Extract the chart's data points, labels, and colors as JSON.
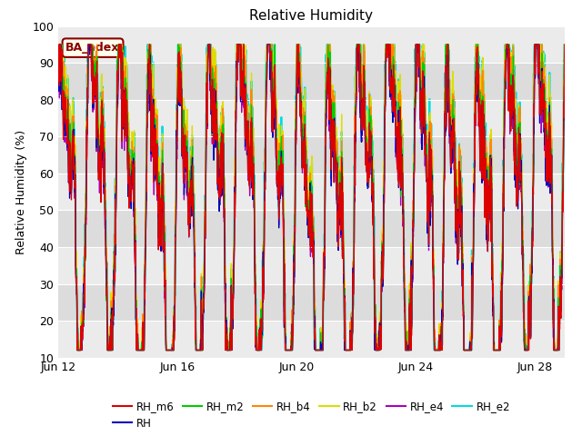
{
  "title": "Relative Humidity",
  "ylabel": "Relative Humidity (%)",
  "ylim": [
    10,
    100
  ],
  "fig_bg_color": "#ffffff",
  "plot_bg_color": "#e8e8e8",
  "annotation_text": "BA_adex",
  "annotation_color": "#8b0000",
  "annotation_bg": "#ffffee",
  "annotation_border": "#8b0000",
  "series": [
    {
      "label": "RH_m6",
      "color": "#dd0000",
      "lw": 0.9,
      "zorder": 6
    },
    {
      "label": "RH",
      "color": "#0000bb",
      "lw": 0.9,
      "zorder": 5
    },
    {
      "label": "RH_m2",
      "color": "#00cc00",
      "lw": 0.9,
      "zorder": 4
    },
    {
      "label": "RH_b4",
      "color": "#ff8800",
      "lw": 0.9,
      "zorder": 3
    },
    {
      "label": "RH_b2",
      "color": "#dddd00",
      "lw": 0.9,
      "zorder": 2
    },
    {
      "label": "RH_e4",
      "color": "#aa00bb",
      "lw": 0.9,
      "zorder": 1
    },
    {
      "label": "RH_e2",
      "color": "#00dddd",
      "lw": 1.4,
      "zorder": 0
    }
  ],
  "xtick_labels": [
    "Jun 12",
    "Jun 16",
    "Jun 20",
    "Jun 24",
    "Jun 28"
  ],
  "xtick_positions": [
    0.0,
    4.0,
    8.0,
    12.0,
    16.0
  ],
  "total_days": 17,
  "n_points": 2000,
  "legend_ncol": 6,
  "band_colors": [
    "#ebebeb",
    "#dcdcdc"
  ]
}
